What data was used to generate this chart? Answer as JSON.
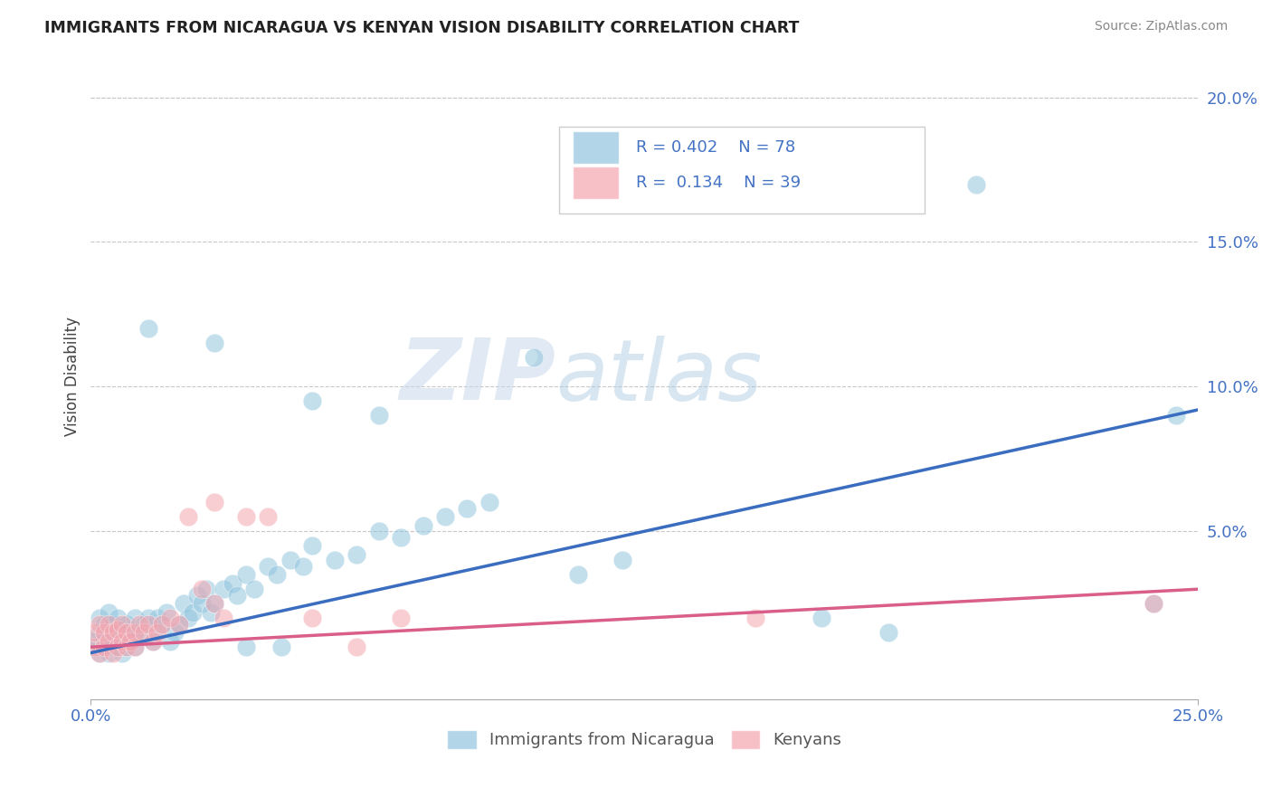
{
  "title": "IMMIGRANTS FROM NICARAGUA VS KENYAN VISION DISABILITY CORRELATION CHART",
  "source": "Source: ZipAtlas.com",
  "ylabel": "Vision Disability",
  "xlim": [
    0.0,
    0.25
  ],
  "ylim": [
    -0.008,
    0.215
  ],
  "blue_color": "#92c5de",
  "pink_color": "#f4a6b0",
  "line_blue": "#3a6dbf",
  "line_pink": "#d95f8a",
  "watermark_zip": "ZIP",
  "watermark_atlas": "atlas",
  "blue_R": 0.402,
  "blue_N": 78,
  "pink_R": 0.134,
  "pink_N": 39,
  "blue_line_x0": 0.0,
  "blue_line_y0": 0.008,
  "blue_line_x1": 0.25,
  "blue_line_y1": 0.092,
  "pink_line_x0": 0.0,
  "pink_line_y0": 0.01,
  "pink_line_x1": 0.25,
  "pink_line_y1": 0.03,
  "blue_scatter_x": [
    0.001,
    0.001,
    0.002,
    0.002,
    0.002,
    0.003,
    0.003,
    0.003,
    0.004,
    0.004,
    0.004,
    0.005,
    0.005,
    0.005,
    0.006,
    0.006,
    0.006,
    0.007,
    0.007,
    0.007,
    0.008,
    0.008,
    0.009,
    0.009,
    0.01,
    0.01,
    0.01,
    0.011,
    0.012,
    0.013,
    0.014,
    0.015,
    0.015,
    0.016,
    0.017,
    0.018,
    0.019,
    0.02,
    0.021,
    0.022,
    0.023,
    0.024,
    0.025,
    0.026,
    0.027,
    0.028,
    0.03,
    0.032,
    0.033,
    0.035,
    0.037,
    0.04,
    0.042,
    0.045,
    0.048,
    0.05,
    0.055,
    0.06,
    0.065,
    0.07,
    0.075,
    0.08,
    0.085,
    0.09,
    0.1,
    0.11,
    0.12,
    0.05,
    0.065,
    0.165,
    0.18,
    0.2,
    0.24,
    0.013,
    0.028,
    0.035,
    0.043,
    0.245
  ],
  "blue_scatter_y": [
    0.01,
    0.012,
    0.008,
    0.015,
    0.02,
    0.01,
    0.012,
    0.018,
    0.008,
    0.015,
    0.022,
    0.01,
    0.012,
    0.018,
    0.01,
    0.015,
    0.02,
    0.008,
    0.012,
    0.016,
    0.01,
    0.018,
    0.012,
    0.016,
    0.01,
    0.015,
    0.02,
    0.015,
    0.018,
    0.02,
    0.012,
    0.015,
    0.02,
    0.018,
    0.022,
    0.012,
    0.015,
    0.018,
    0.025,
    0.02,
    0.022,
    0.028,
    0.025,
    0.03,
    0.022,
    0.025,
    0.03,
    0.032,
    0.028,
    0.035,
    0.03,
    0.038,
    0.035,
    0.04,
    0.038,
    0.045,
    0.04,
    0.042,
    0.05,
    0.048,
    0.052,
    0.055,
    0.058,
    0.06,
    0.11,
    0.035,
    0.04,
    0.095,
    0.09,
    0.02,
    0.015,
    0.17,
    0.025,
    0.12,
    0.115,
    0.01,
    0.01,
    0.09
  ],
  "pink_scatter_x": [
    0.001,
    0.001,
    0.002,
    0.002,
    0.003,
    0.003,
    0.004,
    0.004,
    0.005,
    0.005,
    0.006,
    0.006,
    0.007,
    0.007,
    0.008,
    0.008,
    0.009,
    0.01,
    0.01,
    0.011,
    0.012,
    0.013,
    0.014,
    0.015,
    0.016,
    0.018,
    0.02,
    0.022,
    0.025,
    0.028,
    0.03,
    0.035,
    0.04,
    0.05,
    0.06,
    0.07,
    0.15,
    0.24,
    0.028
  ],
  "pink_scatter_y": [
    0.01,
    0.015,
    0.008,
    0.018,
    0.01,
    0.015,
    0.012,
    0.018,
    0.008,
    0.015,
    0.01,
    0.016,
    0.012,
    0.018,
    0.01,
    0.015,
    0.012,
    0.01,
    0.015,
    0.018,
    0.015,
    0.018,
    0.012,
    0.015,
    0.018,
    0.02,
    0.018,
    0.055,
    0.03,
    0.025,
    0.02,
    0.055,
    0.055,
    0.02,
    0.01,
    0.02,
    0.02,
    0.025,
    0.06
  ]
}
